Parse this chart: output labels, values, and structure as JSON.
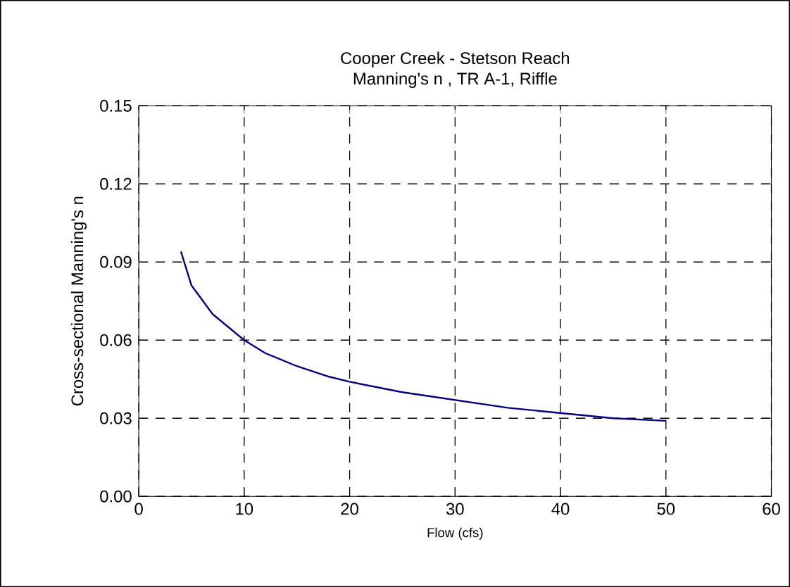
{
  "chart_data": {
    "type": "line",
    "title": "Cooper Creek - Stetson Reach",
    "subtitle": "Manning's n , TR A-1, Riffle",
    "xlabel": "Flow (cfs)",
    "ylabel": "Cross-sectional Manning's n",
    "x": [
      4,
      5,
      7,
      10,
      12,
      15,
      18,
      20,
      25,
      30,
      35,
      40,
      45,
      50
    ],
    "series": [
      {
        "color": "#000080",
        "values": [
          0.094,
          0.081,
          0.07,
          0.06,
          0.055,
          0.05,
          0.046,
          0.044,
          0.04,
          0.037,
          0.034,
          0.032,
          0.03,
          0.029
        ]
      }
    ],
    "xlim": [
      0,
      60
    ],
    "xticks": [
      0,
      10,
      20,
      30,
      40,
      50,
      60
    ],
    "ylim": [
      0,
      0.15
    ],
    "yticks": [
      {
        "value": 0,
        "label": "0.00"
      },
      {
        "value": 0.03,
        "label": "0.03"
      },
      {
        "value": 0.06,
        "label": "0.06"
      },
      {
        "value": 0.09,
        "label": "0.09"
      },
      {
        "value": 0.12,
        "label": "0.12"
      },
      {
        "value": 0.15,
        "label": "0.15"
      }
    ],
    "grid": true,
    "marker": "none",
    "line_style": "solid"
  }
}
